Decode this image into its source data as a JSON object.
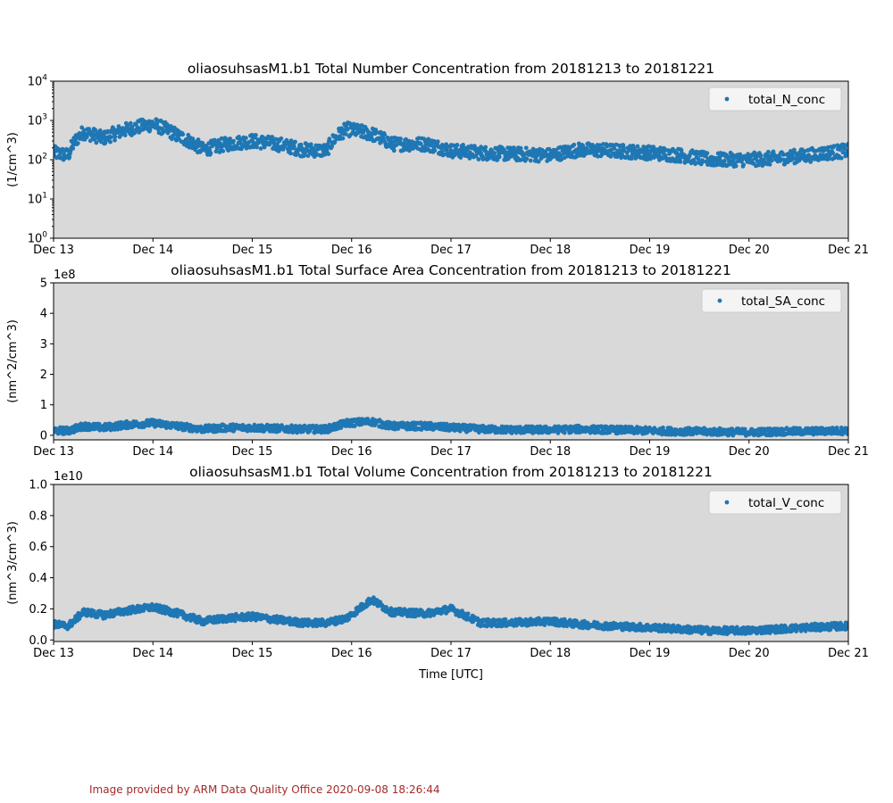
{
  "chart_data": [
    {
      "type": "scatter",
      "title": "oliaosuhsasM1.b1 Total Number Concentration from 20181213 to 20181221",
      "ylabel": "(1/cm^3)",
      "xlabel": "",
      "yscale": "log",
      "ylim": [
        1,
        10000
      ],
      "y_ticks": [
        "10^0",
        "10^1",
        "10^2",
        "10^3",
        "10^4"
      ],
      "x_ticks": [
        "Dec 13",
        "Dec 14",
        "Dec 15",
        "Dec 16",
        "Dec 17",
        "Dec 18",
        "Dec 19",
        "Dec 20",
        "Dec 21"
      ],
      "exponent_label": "",
      "legend_position": "top-right",
      "grid": false,
      "series": [
        {
          "name": "total_N_conc",
          "color": "#1f77b4",
          "x": [
            13.0,
            13.15,
            13.3,
            13.5,
            13.75,
            14.0,
            14.25,
            14.5,
            14.75,
            15.0,
            15.25,
            15.5,
            15.75,
            15.95,
            16.2,
            16.4,
            16.75,
            17.0,
            17.3,
            17.6,
            18.0,
            18.3,
            18.6,
            19.0,
            19.3,
            19.6,
            20.0,
            20.3,
            20.6,
            21.0
          ],
          "y": [
            150,
            130,
            500,
            350,
            600,
            800,
            400,
            180,
            250,
            300,
            250,
            180,
            170,
            600,
            450,
            250,
            250,
            170,
            150,
            140,
            130,
            180,
            170,
            150,
            130,
            100,
            100,
            110,
            130,
            170
          ]
        }
      ]
    },
    {
      "type": "scatter",
      "title": "oliaosuhsasM1.b1 Total Surface Area Concentration from 20181213 to 20181221",
      "ylabel": "(nm^2/cm^3)",
      "xlabel": "",
      "yscale": "linear",
      "ylim": [
        -0.15,
        5
      ],
      "y_ticks": [
        "0",
        "1",
        "2",
        "3",
        "4",
        "5"
      ],
      "x_ticks": [
        "Dec 13",
        "Dec 14",
        "Dec 15",
        "Dec 16",
        "Dec 17",
        "Dec 18",
        "Dec 19",
        "Dec 20",
        "Dec 21"
      ],
      "exponent_label": "1e8",
      "legend_position": "top-right",
      "grid": false,
      "series": [
        {
          "name": "total_SA_conc",
          "color": "#1f77b4",
          "x": [
            13.0,
            13.15,
            13.3,
            13.5,
            13.75,
            14.0,
            14.25,
            14.5,
            14.75,
            15.0,
            15.25,
            15.5,
            15.75,
            15.95,
            16.2,
            16.4,
            16.75,
            17.0,
            17.3,
            17.6,
            18.0,
            18.3,
            18.6,
            19.0,
            19.3,
            19.6,
            20.0,
            20.3,
            20.6,
            21.0
          ],
          "y": [
            0.15,
            0.15,
            0.3,
            0.25,
            0.35,
            0.4,
            0.3,
            0.2,
            0.25,
            0.25,
            0.22,
            0.2,
            0.2,
            0.4,
            0.45,
            0.3,
            0.3,
            0.25,
            0.2,
            0.18,
            0.18,
            0.2,
            0.18,
            0.15,
            0.13,
            0.12,
            0.1,
            0.12,
            0.13,
            0.15
          ]
        }
      ]
    },
    {
      "type": "scatter",
      "title": "oliaosuhsasM1.b1 Total Volume Concentration from 20181213 to 20181221",
      "ylabel": "(nm^3/cm^3)",
      "xlabel": "Time [UTC]",
      "yscale": "linear",
      "ylim": [
        -0.01,
        1.0
      ],
      "y_ticks": [
        "0.0",
        "0.2",
        "0.4",
        "0.6",
        "0.8",
        "1.0"
      ],
      "x_ticks": [
        "Dec 13",
        "Dec 14",
        "Dec 15",
        "Dec 16",
        "Dec 17",
        "Dec 18",
        "Dec 19",
        "Dec 20",
        "Dec 21"
      ],
      "exponent_label": "1e10",
      "legend_position": "top-right",
      "grid": false,
      "series": [
        {
          "name": "total_V_conc",
          "color": "#1f77b4",
          "x": [
            13.0,
            13.15,
            13.3,
            13.5,
            13.75,
            14.0,
            14.25,
            14.5,
            14.75,
            15.0,
            15.25,
            15.5,
            15.75,
            15.95,
            16.2,
            16.4,
            16.75,
            17.0,
            17.3,
            17.6,
            18.0,
            18.3,
            18.6,
            19.0,
            19.3,
            19.6,
            20.0,
            20.3,
            20.6,
            21.0
          ],
          "y": [
            0.1,
            0.09,
            0.18,
            0.16,
            0.19,
            0.21,
            0.17,
            0.12,
            0.14,
            0.15,
            0.13,
            0.11,
            0.11,
            0.14,
            0.26,
            0.18,
            0.17,
            0.2,
            0.11,
            0.11,
            0.12,
            0.1,
            0.09,
            0.08,
            0.07,
            0.06,
            0.06,
            0.07,
            0.08,
            0.09
          ]
        }
      ]
    }
  ],
  "footer": {
    "credit": "Image provided by ARM Data Quality Office 2020-09-08 18:26:44",
    "credit_color": "#a52a2a"
  },
  "style": {
    "plot_background": "#d9d9d9",
    "marker_color": "#1f77b4"
  }
}
